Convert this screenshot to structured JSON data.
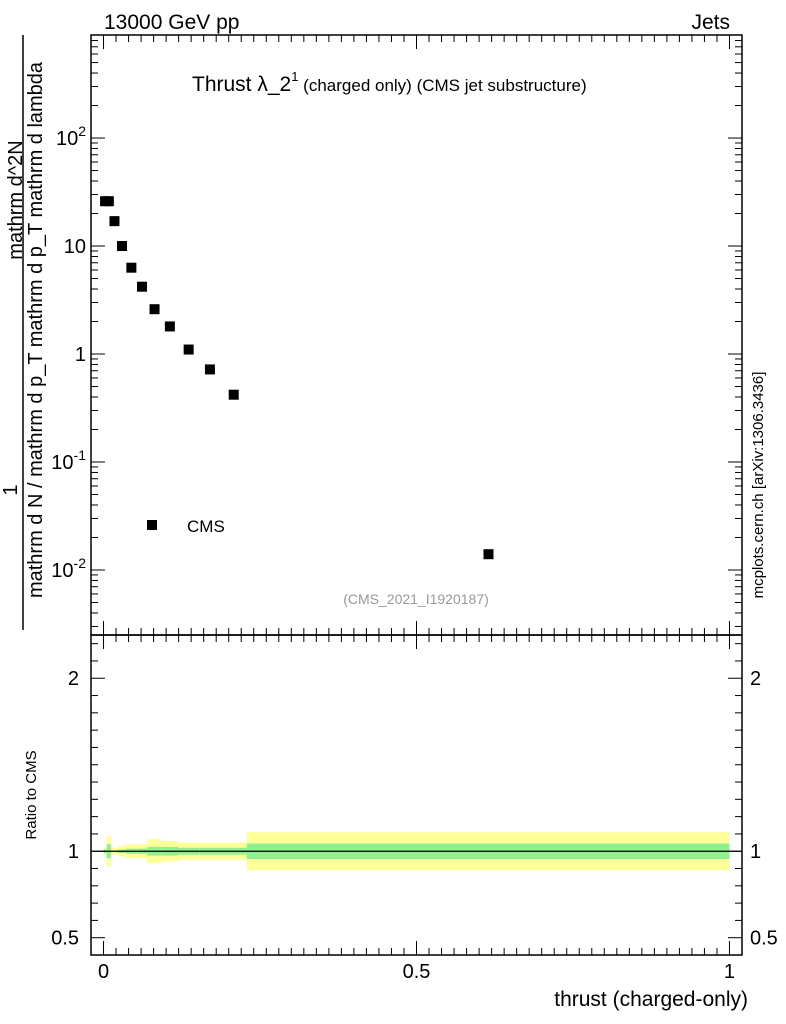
{
  "header": {
    "left": "13000 GeV pp",
    "right": "Jets"
  },
  "title": {
    "main": "Thrust λ_2",
    "sup": "1",
    "rest": " (charged only) (CMS jet substructure)"
  },
  "side_label": "mcplots.cern.ch [arXiv:1306.3436]",
  "watermark": "(CMS_2021_I1920187)",
  "ylabel_upper": {
    "numerator": "1",
    "numerator_full": "mathrm d N / mathrm d p_T mathrm d p_T mathrm d lambda",
    "denominator": "mathrm d N / mathrm d p_T mathrm d p_T mathrm d lambda",
    "top": "mathrm d^2N"
  },
  "ylabel_lower": "Ratio to CMS",
  "xlabel": "thrust (charged-only)",
  "legend": {
    "label": "CMS"
  },
  "colors": {
    "data": "#000000",
    "band_inner": "#90f090",
    "band_outer": "#ffff99",
    "ratio_line": "#000000"
  },
  "chart_data": [
    {
      "type": "scatter",
      "panel": "main",
      "ylog": true,
      "xlim": [
        -0.02,
        1.02
      ],
      "ylim": [
        0.0025,
        900
      ],
      "y_ticks": [
        {
          "v": 0.01,
          "label": "10^-2"
        },
        {
          "v": 0.1,
          "label": "10^-1"
        },
        {
          "v": 1,
          "label": "1"
        },
        {
          "v": 10,
          "label": "10"
        },
        {
          "v": 100,
          "label": "10^2"
        }
      ],
      "series": [
        {
          "name": "CMS",
          "x": [
            0.0025,
            0.0085,
            0.0175,
            0.0295,
            0.0445,
            0.0615,
            0.0815,
            0.106,
            0.136,
            0.17,
            0.208,
            0.615
          ],
          "y": [
            26,
            26,
            17,
            10,
            6.3,
            4.2,
            2.6,
            1.8,
            1.1,
            0.72,
            0.42,
            0.014
          ]
        }
      ]
    },
    {
      "type": "area",
      "panel": "ratio",
      "xlim": [
        -0.02,
        1.02
      ],
      "ylim": [
        0.4,
        2.25
      ],
      "y_ticks": [
        {
          "v": 0.5,
          "label": "0.5"
        },
        {
          "v": 1,
          "label": "1"
        },
        {
          "v": 2,
          "label": "2"
        }
      ],
      "x_ticks": [
        {
          "v": 0,
          "label": "0"
        },
        {
          "v": 0.5,
          "label": "0.5"
        },
        {
          "v": 1,
          "label": "1"
        }
      ],
      "bin_edges": [
        0,
        0.005,
        0.012,
        0.023,
        0.036,
        0.053,
        0.07,
        0.093,
        0.119,
        0.153,
        0.187,
        0.229,
        1.0
      ],
      "outer_low": [
        0.98,
        0.91,
        0.98,
        0.97,
        0.96,
        0.96,
        0.93,
        0.94,
        0.95,
        0.95,
        0.95,
        0.89
      ],
      "outer_high": [
        1.02,
        1.09,
        1.02,
        1.03,
        1.04,
        1.04,
        1.07,
        1.06,
        1.05,
        1.05,
        1.05,
        1.11
      ],
      "inner_low": [
        0.99,
        0.96,
        0.995,
        0.99,
        0.985,
        0.985,
        0.975,
        0.975,
        0.98,
        0.98,
        0.98,
        0.955
      ],
      "inner_high": [
        1.01,
        1.04,
        1.005,
        1.01,
        1.015,
        1.015,
        1.025,
        1.025,
        1.02,
        1.02,
        1.02,
        1.045
      ]
    }
  ]
}
